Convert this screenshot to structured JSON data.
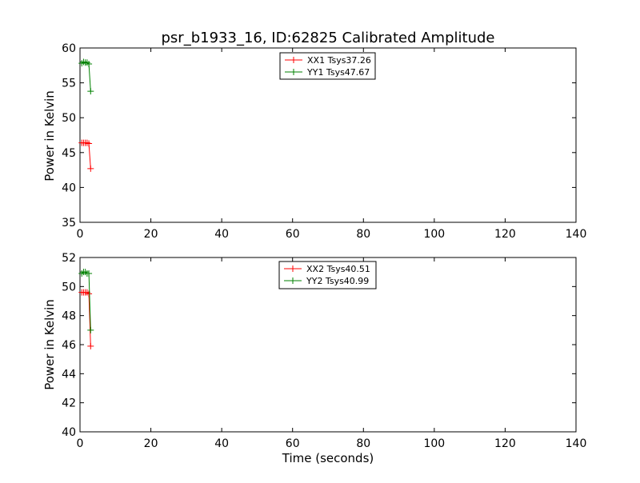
{
  "chart_data": [
    {
      "type": "line",
      "title": "psr_b1933_16, ID:62825 Calibrated Amplitude",
      "xlabel": "",
      "ylabel": "Power in Kelvin",
      "xlim": [
        0,
        140
      ],
      "ylim": [
        35,
        60
      ],
      "xticks": [
        0,
        20,
        40,
        60,
        80,
        100,
        120,
        140
      ],
      "yticks": [
        35,
        40,
        45,
        50,
        55,
        60
      ],
      "xtick_labels": [
        "0",
        "20",
        "40",
        "60",
        "80",
        "100",
        "120",
        "140"
      ],
      "ytick_labels": [
        "35",
        "40",
        "45",
        "50",
        "55",
        "60"
      ],
      "marker": "+",
      "grid": false,
      "legend_position": "top-center",
      "series": [
        {
          "name": "XX1 Tsys37.26",
          "color": "#ff0000",
          "x": [
            0.5,
            1.0,
            1.5,
            2.0,
            2.5,
            3.0
          ],
          "y": [
            46.4,
            46.4,
            46.4,
            46.4,
            46.3,
            42.7
          ]
        },
        {
          "name": "YY1 Tsys47.67",
          "color": "#008000",
          "x": [
            0.5,
            1.0,
            1.5,
            2.0,
            2.5,
            3.0
          ],
          "y": [
            57.8,
            58.0,
            57.9,
            57.9,
            57.7,
            53.8
          ]
        }
      ]
    },
    {
      "type": "line",
      "title": "",
      "xlabel": "Time (seconds)",
      "ylabel": "Power in Kelvin",
      "xlim": [
        0,
        140
      ],
      "ylim": [
        40,
        52
      ],
      "xticks": [
        0,
        20,
        40,
        60,
        80,
        100,
        120,
        140
      ],
      "yticks": [
        40,
        42,
        44,
        46,
        48,
        50,
        52
      ],
      "xtick_labels": [
        "0",
        "20",
        "40",
        "60",
        "80",
        "100",
        "120",
        "140"
      ],
      "ytick_labels": [
        "40",
        "42",
        "44",
        "46",
        "48",
        "50",
        "52"
      ],
      "marker": "+",
      "grid": false,
      "legend_position": "top-center",
      "series": [
        {
          "name": "XX2 Tsys40.51",
          "color": "#ff0000",
          "x": [
            0.5,
            1.0,
            1.5,
            2.0,
            2.5,
            3.0
          ],
          "y": [
            49.6,
            49.6,
            49.6,
            49.6,
            49.5,
            45.9
          ]
        },
        {
          "name": "YY2 Tsys40.99",
          "color": "#008000",
          "x": [
            0.5,
            1.0,
            1.5,
            2.0,
            2.5,
            3.0
          ],
          "y": [
            50.9,
            51.0,
            51.0,
            50.9,
            50.9,
            47.0
          ]
        }
      ]
    }
  ]
}
